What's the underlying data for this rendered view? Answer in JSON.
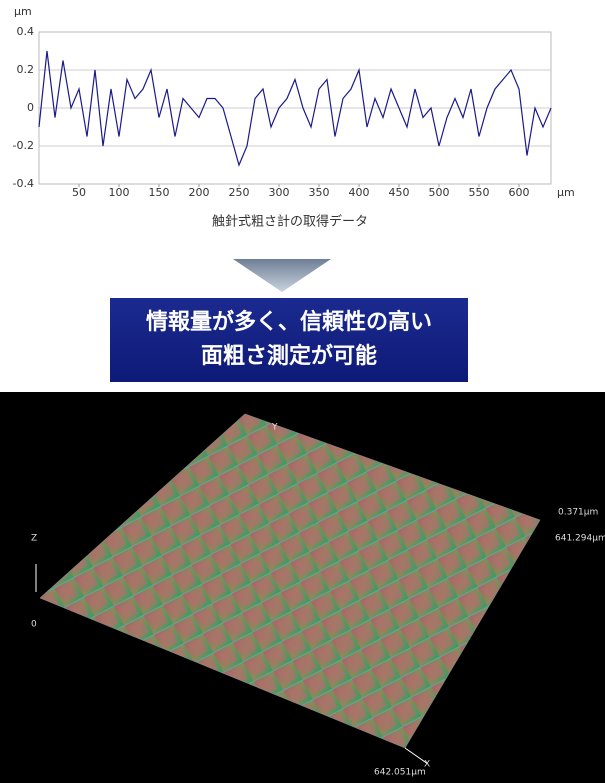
{
  "chart_data": {
    "type": "line",
    "y_unit": "μm",
    "x_unit": "μm",
    "caption": "触針式粗さ計の取得データ",
    "x": [
      0,
      10,
      20,
      30,
      40,
      50,
      60,
      70,
      80,
      90,
      100,
      110,
      120,
      130,
      140,
      150,
      160,
      170,
      180,
      190,
      200,
      210,
      220,
      230,
      240,
      250,
      260,
      270,
      280,
      290,
      300,
      310,
      320,
      330,
      340,
      350,
      360,
      370,
      380,
      390,
      400,
      410,
      420,
      430,
      440,
      450,
      460,
      470,
      480,
      490,
      500,
      510,
      520,
      530,
      540,
      550,
      560,
      570,
      580,
      590,
      600,
      610,
      620,
      630,
      640
    ],
    "series": [
      {
        "color": "#1a1a8c",
        "values": [
          -0.1,
          0.3,
          -0.05,
          0.25,
          0.0,
          0.1,
          -0.15,
          0.2,
          -0.2,
          0.1,
          -0.15,
          0.15,
          0.05,
          0.1,
          0.2,
          -0.05,
          0.1,
          -0.15,
          0.05,
          0.0,
          -0.05,
          0.05,
          0.05,
          0.0,
          -0.15,
          -0.3,
          -0.2,
          0.05,
          0.1,
          -0.1,
          0.0,
          0.05,
          0.15,
          0.0,
          -0.1,
          0.1,
          0.15,
          -0.15,
          0.05,
          0.1,
          0.2,
          -0.1,
          0.05,
          -0.05,
          0.1,
          0.0,
          -0.1,
          0.1,
          -0.05,
          0.0,
          -0.2,
          -0.05,
          0.05,
          -0.05,
          0.1,
          -0.15,
          0.0,
          0.1,
          0.15,
          0.2,
          0.1,
          -0.25,
          0.0,
          -0.1,
          0.0
        ]
      }
    ],
    "xlim": [
      0,
      640
    ],
    "xticks": [
      50,
      100,
      150,
      200,
      250,
      300,
      350,
      400,
      450,
      500,
      550,
      600
    ],
    "ylim": [
      -0.4,
      0.4
    ],
    "yticks": [
      0.4,
      0.2,
      0,
      -0.2,
      -0.4
    ],
    "grid": true
  },
  "banner": {
    "lines": [
      "情報量が多く、信頼性の高い",
      "面粗さ測定が可能"
    ]
  },
  "surface": {
    "y_axis": "Y",
    "z_axis": "Z",
    "z_zero": "0",
    "x_axis": "X",
    "z_max": "0.371μm",
    "y_length": "641.294μm",
    "x_length": "642.051μm"
  }
}
